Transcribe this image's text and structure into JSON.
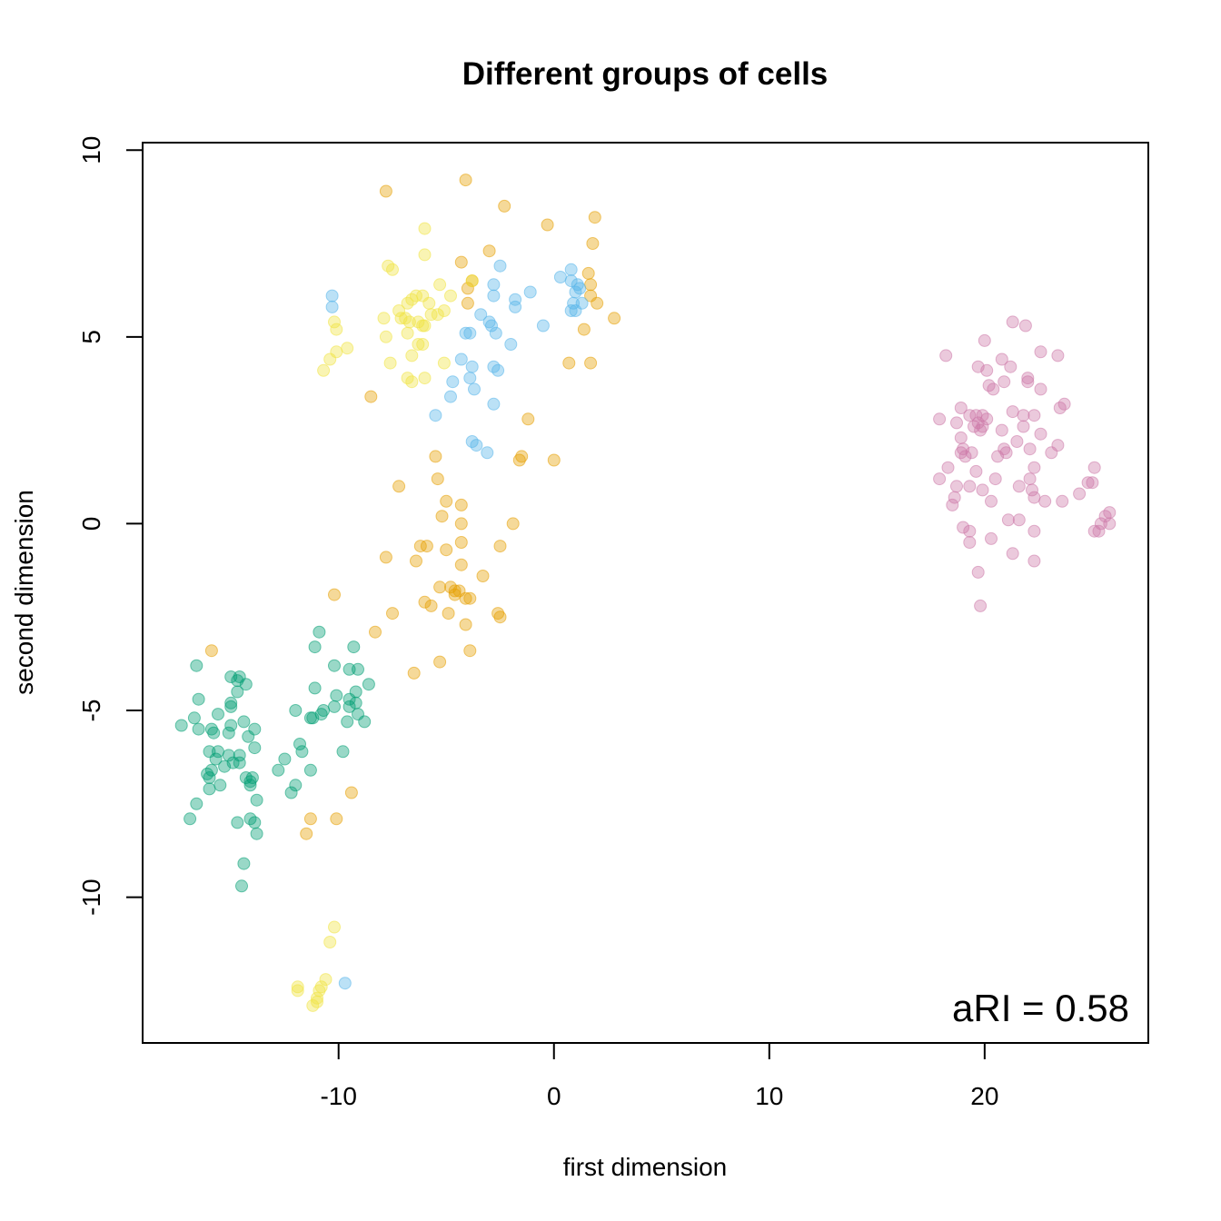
{
  "chart_data": {
    "type": "scatter",
    "title": "Different groups of cells",
    "xlabel": "first dimension",
    "ylabel": "second dimension",
    "xlim": [
      -19.1,
      27.6
    ],
    "ylim": [
      -13.9,
      10.2
    ],
    "x_ticks": [
      -10,
      0,
      10,
      20
    ],
    "y_ticks": [
      -10,
      -5,
      0,
      5,
      10
    ],
    "x_tick_labels": [
      "-10",
      "0",
      "10",
      "20"
    ],
    "y_tick_labels": [
      "-10",
      "-5",
      "0",
      "5",
      "10"
    ],
    "annotation": "aRI = 0.58",
    "annotation_position": "bottom-right",
    "grid": false,
    "legend": "none",
    "marker": "filled-circle",
    "series": [
      {
        "color": "#009E73",
        "points": [
          [
            -16.6,
            -3.8
          ],
          [
            -15.0,
            -4.1
          ],
          [
            -14.6,
            -4.1
          ],
          [
            -14.7,
            -4.2
          ],
          [
            -14.3,
            -4.3
          ],
          [
            -14.7,
            -4.5
          ],
          [
            -16.5,
            -4.7
          ],
          [
            -15.0,
            -4.8
          ],
          [
            -15.0,
            -4.9
          ],
          [
            -15.6,
            -5.1
          ],
          [
            -16.7,
            -5.2
          ],
          [
            -14.4,
            -5.3
          ],
          [
            -17.3,
            -5.4
          ],
          [
            -15.0,
            -5.4
          ],
          [
            -13.9,
            -5.5
          ],
          [
            -16.5,
            -5.5
          ],
          [
            -15.9,
            -5.5
          ],
          [
            -15.8,
            -5.6
          ],
          [
            -15.1,
            -5.6
          ],
          [
            -14.2,
            -5.7
          ],
          [
            -13.9,
            -6.0
          ],
          [
            -15.6,
            -6.1
          ],
          [
            -16.0,
            -6.1
          ],
          [
            -14.6,
            -6.2
          ],
          [
            -15.1,
            -6.2
          ],
          [
            -15.7,
            -6.3
          ],
          [
            -14.9,
            -6.4
          ],
          [
            -14.6,
            -6.4
          ],
          [
            -15.3,
            -6.5
          ],
          [
            -15.9,
            -6.6
          ],
          [
            -16.1,
            -6.7
          ],
          [
            -16.0,
            -6.8
          ],
          [
            -14.3,
            -6.8
          ],
          [
            -14.0,
            -6.8
          ],
          [
            -14.1,
            -6.9
          ],
          [
            -14.1,
            -7.0
          ],
          [
            -15.5,
            -7.0
          ],
          [
            -16.0,
            -7.1
          ],
          [
            -13.8,
            -7.4
          ],
          [
            -16.6,
            -7.5
          ],
          [
            -14.1,
            -7.9
          ],
          [
            -14.7,
            -8.0
          ],
          [
            -16.9,
            -7.9
          ],
          [
            -13.9,
            -8.0
          ],
          [
            -13.8,
            -8.3
          ],
          [
            -14.4,
            -9.1
          ],
          [
            -14.5,
            -9.7
          ],
          [
            -10.9,
            -2.9
          ],
          [
            -11.1,
            -3.3
          ],
          [
            -9.3,
            -3.3
          ],
          [
            -10.2,
            -3.8
          ],
          [
            -9.5,
            -3.9
          ],
          [
            -9.1,
            -3.9
          ],
          [
            -11.1,
            -4.4
          ],
          [
            -8.6,
            -4.3
          ],
          [
            -10.1,
            -4.6
          ],
          [
            -9.2,
            -4.5
          ],
          [
            -9.5,
            -4.7
          ],
          [
            -9.2,
            -4.8
          ],
          [
            -10.2,
            -4.9
          ],
          [
            -9.5,
            -4.9
          ],
          [
            -12.0,
            -5.0
          ],
          [
            -10.7,
            -5.0
          ],
          [
            -11.2,
            -5.2
          ],
          [
            -10.8,
            -5.1
          ],
          [
            -11.3,
            -5.2
          ],
          [
            -9.1,
            -5.1
          ],
          [
            -8.8,
            -5.3
          ],
          [
            -9.6,
            -5.3
          ],
          [
            -11.8,
            -5.9
          ],
          [
            -11.7,
            -6.1
          ],
          [
            -9.8,
            -6.1
          ],
          [
            -12.5,
            -6.3
          ],
          [
            -11.3,
            -6.6
          ],
          [
            -12.8,
            -6.6
          ],
          [
            -12.0,
            -7.0
          ],
          [
            -12.2,
            -7.2
          ]
        ]
      },
      {
        "color": "#E69F00",
        "points": [
          [
            -4.1,
            9.2
          ],
          [
            -7.8,
            8.9
          ],
          [
            -2.3,
            8.5
          ],
          [
            1.9,
            8.2
          ],
          [
            -0.3,
            8.0
          ],
          [
            1.8,
            7.5
          ],
          [
            -3.0,
            7.3
          ],
          [
            -4.3,
            7.0
          ],
          [
            1.6,
            6.7
          ],
          [
            -3.8,
            6.5
          ],
          [
            1.7,
            6.4
          ],
          [
            -4.0,
            6.3
          ],
          [
            1.7,
            6.1
          ],
          [
            2.0,
            5.9
          ],
          [
            -4.0,
            5.9
          ],
          [
            2.8,
            5.5
          ],
          [
            1.4,
            5.2
          ],
          [
            0.7,
            4.3
          ],
          [
            1.7,
            4.3
          ],
          [
            -8.5,
            3.4
          ],
          [
            -1.2,
            2.8
          ],
          [
            -1.5,
            1.8
          ],
          [
            -5.5,
            1.8
          ],
          [
            -1.6,
            1.7
          ],
          [
            0.0,
            1.7
          ],
          [
            -5.4,
            1.2
          ],
          [
            -7.2,
            1.0
          ],
          [
            -5.0,
            0.6
          ],
          [
            -4.3,
            0.5
          ],
          [
            -5.2,
            0.2
          ],
          [
            -1.9,
            0.0
          ],
          [
            -4.3,
            0.0
          ],
          [
            -6.2,
            -0.6
          ],
          [
            -5.9,
            -0.6
          ],
          [
            -2.5,
            -0.6
          ],
          [
            -4.3,
            -0.5
          ],
          [
            -5.0,
            -0.7
          ],
          [
            -7.8,
            -0.9
          ],
          [
            -6.4,
            -1.0
          ],
          [
            -4.3,
            -1.1
          ],
          [
            -3.3,
            -1.4
          ],
          [
            -5.3,
            -1.7
          ],
          [
            -4.8,
            -1.7
          ],
          [
            -4.6,
            -1.8
          ],
          [
            -4.4,
            -1.8
          ],
          [
            -4.6,
            -1.9
          ],
          [
            -4.1,
            -2.0
          ],
          [
            -3.9,
            -2.0
          ],
          [
            -10.2,
            -1.9
          ],
          [
            -6.0,
            -2.1
          ],
          [
            -5.7,
            -2.2
          ],
          [
            -2.6,
            -2.4
          ],
          [
            -2.5,
            -2.5
          ],
          [
            -4.9,
            -2.4
          ],
          [
            -7.5,
            -2.4
          ],
          [
            -4.1,
            -2.7
          ],
          [
            -8.3,
            -2.9
          ],
          [
            -3.9,
            -3.4
          ],
          [
            -15.9,
            -3.4
          ],
          [
            -5.3,
            -3.7
          ],
          [
            -6.5,
            -4.0
          ],
          [
            -9.4,
            -7.2
          ],
          [
            -11.3,
            -7.9
          ],
          [
            -10.1,
            -7.9
          ],
          [
            -11.5,
            -8.3
          ]
        ]
      },
      {
        "color": "#F0E442",
        "points": [
          [
            -6.0,
            7.9
          ],
          [
            -6.0,
            7.2
          ],
          [
            -7.7,
            6.9
          ],
          [
            -7.5,
            6.8
          ],
          [
            -5.3,
            6.4
          ],
          [
            -3.8,
            6.5
          ],
          [
            -6.4,
            6.1
          ],
          [
            -4.8,
            6.1
          ],
          [
            -6.6,
            6.0
          ],
          [
            -6.1,
            6.1
          ],
          [
            -5.8,
            5.9
          ],
          [
            -6.8,
            5.9
          ],
          [
            -7.2,
            5.7
          ],
          [
            -5.1,
            5.7
          ],
          [
            -7.9,
            5.5
          ],
          [
            -7.1,
            5.5
          ],
          [
            -6.9,
            5.5
          ],
          [
            -5.7,
            5.6
          ],
          [
            -5.4,
            5.6
          ],
          [
            -6.7,
            5.4
          ],
          [
            -6.3,
            5.4
          ],
          [
            -6.0,
            5.3
          ],
          [
            -6.1,
            5.3
          ],
          [
            -10.2,
            5.4
          ],
          [
            -10.1,
            5.2
          ],
          [
            -6.8,
            5.1
          ],
          [
            -7.8,
            5.0
          ],
          [
            -6.1,
            4.8
          ],
          [
            -6.3,
            4.8
          ],
          [
            -9.6,
            4.7
          ],
          [
            -10.1,
            4.6
          ],
          [
            -6.6,
            4.5
          ],
          [
            -10.4,
            4.4
          ],
          [
            -7.6,
            4.3
          ],
          [
            -5.1,
            4.3
          ],
          [
            -10.7,
            4.1
          ],
          [
            -6.8,
            3.9
          ],
          [
            -6.6,
            3.8
          ],
          [
            -6.0,
            3.9
          ],
          [
            -10.2,
            -10.8
          ],
          [
            -10.4,
            -11.2
          ],
          [
            -10.6,
            -12.2
          ],
          [
            -10.8,
            -12.4
          ],
          [
            -10.9,
            -12.5
          ],
          [
            -11.0,
            -12.8
          ],
          [
            -11.0,
            -12.7
          ],
          [
            -11.2,
            -12.9
          ],
          [
            -11.9,
            -12.4
          ],
          [
            -11.9,
            -12.5
          ]
        ]
      },
      {
        "color": "#56B4E9",
        "points": [
          [
            -10.3,
            6.1
          ],
          [
            -10.3,
            5.8
          ],
          [
            -2.5,
            6.9
          ],
          [
            0.8,
            6.8
          ],
          [
            0.3,
            6.6
          ],
          [
            0.8,
            6.5
          ],
          [
            1.1,
            6.4
          ],
          [
            1.2,
            6.3
          ],
          [
            -2.8,
            6.4
          ],
          [
            -1.1,
            6.2
          ],
          [
            1.0,
            6.2
          ],
          [
            -2.8,
            6.1
          ],
          [
            -1.8,
            6.0
          ],
          [
            0.9,
            5.9
          ],
          [
            1.3,
            5.9
          ],
          [
            -1.8,
            5.8
          ],
          [
            1.0,
            5.7
          ],
          [
            0.8,
            5.7
          ],
          [
            -3.4,
            5.6
          ],
          [
            -3.0,
            5.4
          ],
          [
            -0.5,
            5.3
          ],
          [
            -2.9,
            5.3
          ],
          [
            -4.1,
            5.1
          ],
          [
            -3.9,
            5.1
          ],
          [
            -2.7,
            5.1
          ],
          [
            -2.0,
            4.8
          ],
          [
            -4.3,
            4.4
          ],
          [
            -3.8,
            4.2
          ],
          [
            -2.8,
            4.2
          ],
          [
            -2.6,
            4.1
          ],
          [
            -3.9,
            3.9
          ],
          [
            -4.7,
            3.8
          ],
          [
            -3.7,
            3.6
          ],
          [
            -4.8,
            3.4
          ],
          [
            -2.8,
            3.2
          ],
          [
            -5.5,
            2.9
          ],
          [
            -3.8,
            2.2
          ],
          [
            -3.6,
            2.1
          ],
          [
            -3.1,
            1.9
          ],
          [
            -9.7,
            -12.3
          ]
        ]
      },
      {
        "color": "#CC79A7",
        "points": [
          [
            21.3,
            5.4
          ],
          [
            21.9,
            5.3
          ],
          [
            20.0,
            4.9
          ],
          [
            18.2,
            4.5
          ],
          [
            22.6,
            4.6
          ],
          [
            23.4,
            4.5
          ],
          [
            20.8,
            4.4
          ],
          [
            19.7,
            4.2
          ],
          [
            20.1,
            4.1
          ],
          [
            21.2,
            4.2
          ],
          [
            22.0,
            3.9
          ],
          [
            22.0,
            3.8
          ],
          [
            20.9,
            3.8
          ],
          [
            20.2,
            3.7
          ],
          [
            20.4,
            3.6
          ],
          [
            22.6,
            3.6
          ],
          [
            23.7,
            3.2
          ],
          [
            23.5,
            3.1
          ],
          [
            18.9,
            3.1
          ],
          [
            21.3,
            3.0
          ],
          [
            22.3,
            2.9
          ],
          [
            21.8,
            2.9
          ],
          [
            19.6,
            2.9
          ],
          [
            19.3,
            2.9
          ],
          [
            19.9,
            2.9
          ],
          [
            20.1,
            2.8
          ],
          [
            19.7,
            2.7
          ],
          [
            18.7,
            2.7
          ],
          [
            17.9,
            2.8
          ],
          [
            19.5,
            2.6
          ],
          [
            19.9,
            2.6
          ],
          [
            19.8,
            2.5
          ],
          [
            20.8,
            2.5
          ],
          [
            22.6,
            2.4
          ],
          [
            21.8,
            2.6
          ],
          [
            18.9,
            2.3
          ],
          [
            21.5,
            2.2
          ],
          [
            23.4,
            2.1
          ],
          [
            19.0,
            2.0
          ],
          [
            19.4,
            1.9
          ],
          [
            18.9,
            1.9
          ],
          [
            20.9,
            2.0
          ],
          [
            22.1,
            2.0
          ],
          [
            21.0,
            1.9
          ],
          [
            23.1,
            1.9
          ],
          [
            20.6,
            1.8
          ],
          [
            19.1,
            1.8
          ],
          [
            18.3,
            1.5
          ],
          [
            22.3,
            1.5
          ],
          [
            19.6,
            1.4
          ],
          [
            25.1,
            1.5
          ],
          [
            17.9,
            1.2
          ],
          [
            20.5,
            1.2
          ],
          [
            22.1,
            1.2
          ],
          [
            18.7,
            1.0
          ],
          [
            19.3,
            1.0
          ],
          [
            21.6,
            1.0
          ],
          [
            19.9,
            0.9
          ],
          [
            22.2,
            0.9
          ],
          [
            24.8,
            1.1
          ],
          [
            25.0,
            1.1
          ],
          [
            22.3,
            0.7
          ],
          [
            18.6,
            0.7
          ],
          [
            24.4,
            0.8
          ],
          [
            20.3,
            0.6
          ],
          [
            22.8,
            0.6
          ],
          [
            23.6,
            0.6
          ],
          [
            18.5,
            0.5
          ],
          [
            25.8,
            0.3
          ],
          [
            25.6,
            0.2
          ],
          [
            25.4,
            0.0
          ],
          [
            21.6,
            0.1
          ],
          [
            21.1,
            0.1
          ],
          [
            25.8,
            0.0
          ],
          [
            19.0,
            -0.1
          ],
          [
            19.3,
            -0.2
          ],
          [
            22.3,
            -0.2
          ],
          [
            25.1,
            -0.2
          ],
          [
            25.3,
            -0.2
          ],
          [
            19.3,
            -0.5
          ],
          [
            20.3,
            -0.4
          ],
          [
            21.3,
            -0.8
          ],
          [
            22.3,
            -1.0
          ],
          [
            19.7,
            -1.3
          ],
          [
            19.8,
            -2.2
          ]
        ]
      }
    ]
  }
}
